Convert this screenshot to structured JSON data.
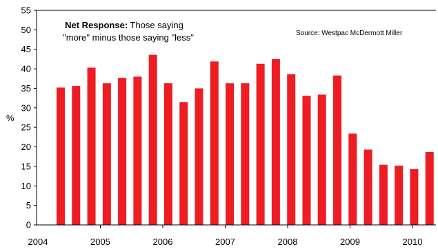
{
  "chart_data": {
    "type": "bar",
    "ylabel": "%",
    "ylim": [
      0,
      55
    ],
    "yticks": [
      0,
      5,
      10,
      15,
      20,
      25,
      30,
      35,
      40,
      45,
      50,
      55
    ],
    "x_tick_labels": [
      "2004",
      "2005",
      "2006",
      "2007",
      "2008",
      "2009",
      "2010"
    ],
    "bar_color": "#ee1d23",
    "values": [
      35.2,
      35.6,
      40.3,
      36.3,
      37.7,
      38.0,
      43.6,
      36.3,
      31.5,
      35.0,
      41.9,
      36.3,
      36.3,
      41.3,
      42.5,
      38.6,
      33.1,
      33.4,
      38.3,
      23.4,
      19.3,
      15.4,
      15.2,
      14.3,
      18.7
    ],
    "annotation": {
      "bold": "Net Response:",
      "line1_rest": " Those saying",
      "line2": "\"more\" minus those saying \"less\""
    },
    "source": "Source:  Westpac McDermott Miller",
    "grid": false,
    "legend": "none"
  }
}
